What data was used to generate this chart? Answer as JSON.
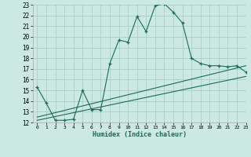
{
  "xlabel": "Humidex (Indice chaleur)",
  "xlim": [
    -0.5,
    23
  ],
  "ylim": [
    12,
    23
  ],
  "xticks": [
    0,
    1,
    2,
    3,
    4,
    5,
    6,
    7,
    8,
    9,
    10,
    11,
    12,
    13,
    14,
    15,
    16,
    17,
    18,
    19,
    20,
    21,
    22,
    23
  ],
  "yticks": [
    12,
    13,
    14,
    15,
    16,
    17,
    18,
    19,
    20,
    21,
    22,
    23
  ],
  "bg_color": "#cce8e2",
  "grid_color": "#aad0c8",
  "line_color": "#1a6b5a",
  "line1_x": [
    0,
    1,
    2,
    3,
    4,
    5,
    6,
    7,
    8,
    9,
    10,
    11,
    12,
    13,
    14,
    15,
    16,
    17,
    18,
    19,
    20,
    21,
    22,
    23
  ],
  "line1_y": [
    15.3,
    13.8,
    12.2,
    12.2,
    12.3,
    15.0,
    13.2,
    13.2,
    17.5,
    19.7,
    19.5,
    21.9,
    20.5,
    22.9,
    23.1,
    22.3,
    21.3,
    18.0,
    17.5,
    17.3,
    17.3,
    17.2,
    17.3,
    16.7
  ],
  "line2_x": [
    0,
    23
  ],
  "line2_y": [
    12.5,
    17.3
  ],
  "line3_x": [
    0,
    23
  ],
  "line3_y": [
    12.2,
    16.3
  ]
}
